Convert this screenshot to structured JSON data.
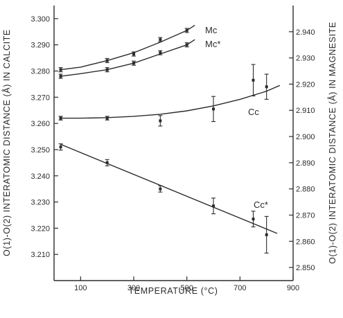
{
  "chart_data": {
    "type": "scatter",
    "xlabel": "TEMPERATURE (°C)",
    "ylabel_left": "O(1)-O(2) INTERATOMIC DISTANCE (Å) IN CALCITE",
    "ylabel_right": "O(1)-O(2) INTERATOMIC DISTANCE (Å) IN MAGNESITE",
    "xlim": [
      0,
      900
    ],
    "ylim_left": [
      3.2,
      3.305
    ],
    "ylim_right": [
      2.845,
      2.95
    ],
    "x_ticks": [
      "100",
      "300",
      "500",
      "700",
      "900"
    ],
    "y_left_ticks": [
      "3.210",
      "3.220",
      "3.230",
      "3.240",
      "3.250",
      "3.260",
      "3.270",
      "3.280",
      "3.290",
      "3.300"
    ],
    "y_right_ticks": [
      "2.850",
      "2.860",
      "2.870",
      "2.880",
      "2.890",
      "2.900",
      "2.910",
      "2.920",
      "2.930",
      "2.940"
    ],
    "grid": false,
    "series": [
      {
        "name": "Mc",
        "axis": "right",
        "x": [
          25,
          200,
          300,
          400,
          500
        ],
        "y": [
          2.9255,
          2.929,
          2.9315,
          2.937,
          2.9405
        ],
        "err": [
          0.0008,
          0.0008,
          0.0008,
          0.0008,
          0.0008
        ],
        "fit_x": [
          25,
          100,
          200,
          300,
          400,
          500,
          530
        ],
        "fit_y": [
          2.9255,
          2.9265,
          2.929,
          2.932,
          2.936,
          2.9405,
          2.9425
        ]
      },
      {
        "name": "Mc*",
        "axis": "right",
        "x": [
          25,
          200,
          300,
          400,
          500
        ],
        "y": [
          2.923,
          2.9255,
          2.928,
          2.932,
          2.935
        ],
        "err": [
          0.0008,
          0.0008,
          0.0008,
          0.0008,
          0.0008
        ],
        "fit_x": [
          25,
          100,
          200,
          300,
          400,
          500,
          530
        ],
        "fit_y": [
          2.923,
          2.924,
          2.9255,
          2.928,
          2.9315,
          2.935,
          2.937
        ]
      },
      {
        "name": "Cc",
        "axis": "left",
        "x": [
          25,
          200,
          400,
          600,
          750,
          800
        ],
        "y": [
          3.262,
          3.262,
          3.261,
          3.2655,
          3.2765,
          3.274
        ],
        "err": [
          0.0007,
          0.0007,
          0.002,
          0.0048,
          0.006,
          0.0048
        ],
        "fit_x": [
          25,
          100,
          200,
          300,
          400,
          500,
          600,
          700,
          800,
          850
        ],
        "fit_y": [
          3.262,
          3.262,
          3.2622,
          3.2627,
          3.2635,
          3.2648,
          3.2667,
          3.2692,
          3.2723,
          3.2745
        ]
      },
      {
        "name": "Cc*",
        "axis": "left",
        "x": [
          25,
          200,
          400,
          600,
          750,
          800
        ],
        "y": [
          3.251,
          3.245,
          3.235,
          3.2285,
          3.2235,
          3.2175
        ],
        "err": [
          0.0012,
          0.0012,
          0.0012,
          0.003,
          0.003,
          0.007
        ],
        "fit_x": [
          25,
          840
        ],
        "fit_y": [
          3.252,
          3.218
        ]
      }
    ],
    "annotations": [
      "Mc",
      "Mc*",
      "Cc",
      "Cc*"
    ]
  }
}
